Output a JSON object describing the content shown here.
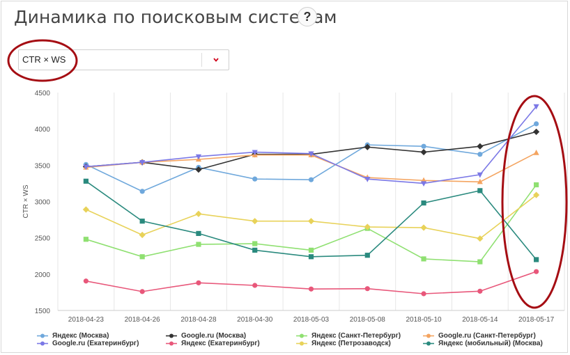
{
  "page": {
    "title": "Динамика по поисковым системам",
    "help_label": "?"
  },
  "metric_select": {
    "value": "CTR × WS"
  },
  "chart_data": {
    "type": "line",
    "ylabel": "CTR × WS",
    "xlabel": "",
    "ylim": [
      1500,
      4500
    ],
    "yticks": [
      1500,
      2000,
      2500,
      3000,
      3500,
      4000,
      4500
    ],
    "grid": "vertical",
    "legend_position": "bottom",
    "categories": [
      "2018-04-23",
      "2018-04-26",
      "2018-04-28",
      "2018-04-30",
      "2018-05-03",
      "2018-05-08",
      "2018-05-10",
      "2018-05-14",
      "2018-05-17"
    ],
    "series": [
      {
        "name": "Яндекс (Москва)",
        "color": "#6fa8dc",
        "marker": "circle",
        "values": [
          3510,
          3140,
          3470,
          3310,
          3300,
          3780,
          3760,
          3650,
          4070
        ]
      },
      {
        "name": "Google.ru (Москва)",
        "color": "#333333",
        "marker": "diamond",
        "values": [
          3480,
          3540,
          3440,
          3650,
          3650,
          3750,
          3680,
          3760,
          3960
        ]
      },
      {
        "name": "Яндекс (Санкт-Петербург)",
        "color": "#8fe071",
        "marker": "square",
        "values": [
          2480,
          2240,
          2410,
          2420,
          2330,
          2630,
          2210,
          2170,
          3230
        ]
      },
      {
        "name": "Google.ru (Санкт-Петербург)",
        "color": "#f4a460",
        "marker": "triangle",
        "values": [
          3470,
          3540,
          3580,
          3640,
          3640,
          3330,
          3290,
          3270,
          3670
        ]
      },
      {
        "name": "Google.ru (Екатеринбург)",
        "color": "#7b78e6",
        "marker": "triangle-down",
        "values": [
          3480,
          3540,
          3620,
          3680,
          3660,
          3310,
          3250,
          3370,
          4310
        ]
      },
      {
        "name": "Яндекс (Екатеринбург)",
        "color": "#e8577a",
        "marker": "circle",
        "values": [
          1905,
          1760,
          1880,
          1845,
          1795,
          1800,
          1730,
          1765,
          2035
        ]
      },
      {
        "name": "Яндекс (Петрозаводск)",
        "color": "#e8d259",
        "marker": "diamond",
        "values": [
          2890,
          2540,
          2830,
          2730,
          2730,
          2650,
          2640,
          2490,
          3090
        ]
      },
      {
        "name": "Яндекс (мобильный) (Москва)",
        "color": "#2a8a7e",
        "marker": "square",
        "values": [
          3280,
          2730,
          2560,
          2330,
          2240,
          2260,
          2980,
          3150,
          2200
        ]
      }
    ]
  },
  "annotations": {
    "highlight_color": "#a50d13"
  }
}
